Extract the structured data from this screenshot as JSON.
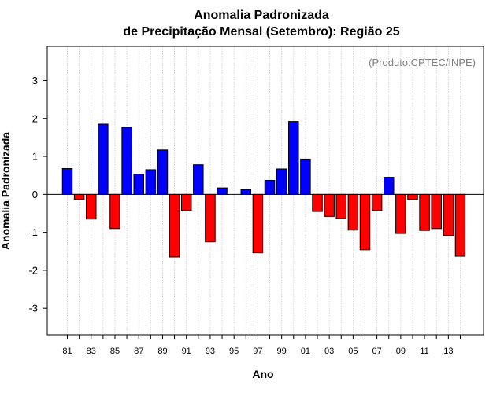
{
  "chart_data": {
    "type": "bar",
    "title": "Anomalia Padronizada",
    "subtitle": "de Precipitação Mensal (Setembro): Região 25",
    "xlabel": "Ano",
    "ylabel": "Anomalia Padronizada",
    "credit": "(Produto:CPTEC/INPE)",
    "ylim": [
      -3.7,
      3.9
    ],
    "yticks": [
      "-3",
      "-2",
      "-1",
      "0",
      "1",
      "2",
      "3"
    ],
    "xtick_labels": [
      "81",
      "83",
      "85",
      "87",
      "89",
      "91",
      "93",
      "95",
      "97",
      "99",
      "01",
      "03",
      "05",
      "07",
      "09",
      "11",
      "13"
    ],
    "grid": "vertical dotted lines at every year",
    "colors": {
      "positive": "#0000ff",
      "negative": "#ff0000",
      "zero_line": "#000000",
      "grid": "#c8c8c8"
    },
    "categories": [
      "1981",
      "1982",
      "1983",
      "1984",
      "1985",
      "1986",
      "1987",
      "1988",
      "1989",
      "1990",
      "1991",
      "1992",
      "1993",
      "1994",
      "1995",
      "1996",
      "1997",
      "1998",
      "1999",
      "2000",
      "2001",
      "2002",
      "2003",
      "2004",
      "2005",
      "2006",
      "2007",
      "2008",
      "2009",
      "2010",
      "2011",
      "2012",
      "2013",
      "2014"
    ],
    "values": [
      0.68,
      -0.13,
      -0.65,
      1.85,
      -0.9,
      1.77,
      0.53,
      0.65,
      1.17,
      -1.65,
      -0.42,
      0.78,
      -1.25,
      0.17,
      0.0,
      0.13,
      -1.54,
      0.37,
      0.67,
      1.92,
      0.93,
      -0.45,
      -0.58,
      -0.63,
      -0.94,
      -1.46,
      -0.42,
      0.45,
      -1.03,
      -0.13,
      -0.95,
      -0.9,
      -1.08,
      -1.63
    ]
  }
}
